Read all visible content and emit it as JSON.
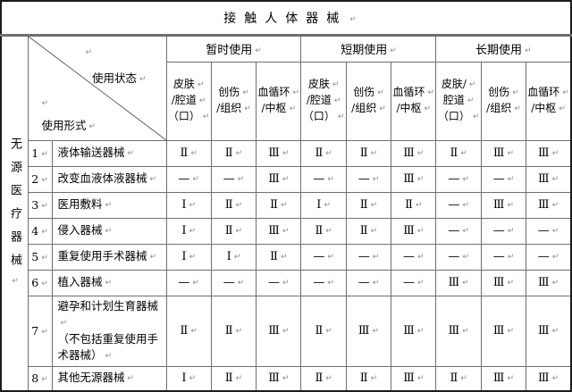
{
  "title": "接触人体器械",
  "corner": {
    "top_label": "使用状态",
    "bottom_label": "使用形式"
  },
  "left_label": "无源医疗器械",
  "groups": [
    {
      "label": "暂时使用",
      "subcols": [
        [
          "皮肤",
          "/腔道",
          "（口）"
        ],
        [
          "创伤",
          "/组织"
        ],
        [
          "血循环",
          "/中枢"
        ]
      ]
    },
    {
      "label": "短期使用",
      "subcols": [
        [
          "皮肤",
          "/腔道",
          "（口）"
        ],
        [
          "创伤",
          "/组织"
        ],
        [
          "血循环",
          "/中枢"
        ]
      ]
    },
    {
      "label": "长期使用",
      "subcols": [
        [
          "皮肤/",
          "腔道",
          "（口）"
        ],
        [
          "创伤",
          "/组织"
        ],
        [
          "血循环",
          "/中枢"
        ]
      ]
    }
  ],
  "rows": [
    {
      "num": "1",
      "label_lines": [
        "液体输送器械"
      ],
      "values": [
        "Ⅱ",
        "Ⅱ",
        "Ⅲ",
        "Ⅱ",
        "Ⅱ",
        "Ⅲ",
        "Ⅱ",
        "Ⅲ",
        "Ⅲ"
      ]
    },
    {
      "num": "2",
      "label_lines": [
        "改变血液体液器械"
      ],
      "values": [
        "—",
        "—",
        "Ⅲ",
        "—",
        "—",
        "Ⅲ",
        "—",
        "—",
        "Ⅲ"
      ]
    },
    {
      "num": "3",
      "label_lines": [
        "医用敷料"
      ],
      "values": [
        "Ⅰ",
        "Ⅱ",
        "Ⅱ",
        "Ⅰ",
        "Ⅱ",
        "Ⅱ",
        "—",
        "Ⅲ",
        "Ⅲ"
      ]
    },
    {
      "num": "4",
      "label_lines": [
        "侵入器械"
      ],
      "values": [
        "Ⅰ",
        "Ⅱ",
        "Ⅲ",
        "Ⅱ",
        "Ⅱ",
        "Ⅲ",
        "—",
        "—",
        "—"
      ]
    },
    {
      "num": "5",
      "label_lines": [
        "重复使用手术器械"
      ],
      "values": [
        "Ⅰ",
        "Ⅰ",
        "Ⅱ",
        "—",
        "—",
        "—",
        "—",
        "—",
        "—"
      ]
    },
    {
      "num": "6",
      "label_lines": [
        "植入器械"
      ],
      "values": [
        "—",
        "—",
        "—",
        "—",
        "—",
        "—",
        "Ⅲ",
        "Ⅲ",
        "Ⅲ"
      ]
    },
    {
      "num": "7",
      "label_lines": [
        "避孕和计划生育器械",
        "（不包括重复使用手术器械）"
      ],
      "values": [
        "Ⅱ",
        "Ⅱ",
        "Ⅲ",
        "Ⅱ",
        "Ⅲ",
        "Ⅲ",
        "Ⅲ",
        "Ⅲ",
        "Ⅲ"
      ]
    },
    {
      "num": "8",
      "label_lines": [
        "其他无源器械"
      ],
      "values": [
        "Ⅰ",
        "Ⅱ",
        "Ⅲ",
        "Ⅱ",
        "Ⅱ",
        "Ⅲ",
        "Ⅱ",
        "Ⅲ",
        "Ⅲ"
      ]
    }
  ],
  "artifacts": {
    "paragraph_mark": "↵"
  }
}
